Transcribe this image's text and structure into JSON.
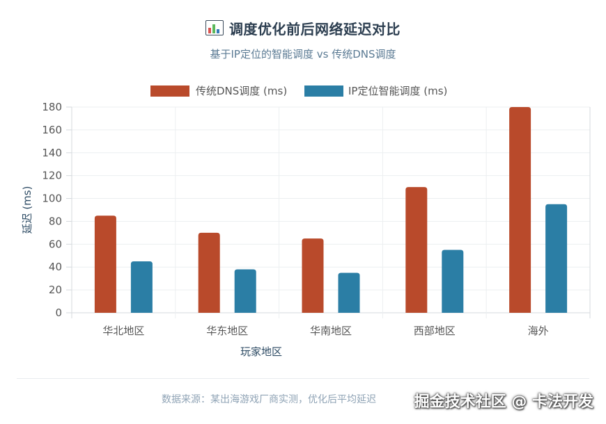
{
  "header": {
    "icon": "bar-chart-icon",
    "title": "调度优化前后网络延迟对比",
    "subtitle": "基于IP定位的智能调度 vs 传统DNS调度"
  },
  "chart_data": {
    "type": "bar",
    "categories": [
      "华北地区",
      "华东地区",
      "华南地区",
      "西部地区",
      "海外"
    ],
    "series": [
      {
        "name": "传统DNS调度 (ms)",
        "color": "#b94a2b",
        "values": [
          85,
          70,
          65,
          110,
          180
        ]
      },
      {
        "name": "IP定位智能调度 (ms)",
        "color": "#2b7ea5",
        "values": [
          45,
          38,
          35,
          55,
          95
        ]
      }
    ],
    "xlabel": "玩家地区",
    "ylabel": "延迟 (ms)",
    "ylim": [
      0,
      180
    ],
    "yticks": [
      "0",
      "20",
      "40",
      "60",
      "80",
      "100",
      "120",
      "140",
      "160",
      "180"
    ],
    "grid": true,
    "legend_position": "top"
  },
  "footer": {
    "text": "数据来源：某出海游戏厂商实测，优化后平均延迟"
  },
  "watermark": {
    "text": "掘金技术社区 @ 卡法开发"
  }
}
